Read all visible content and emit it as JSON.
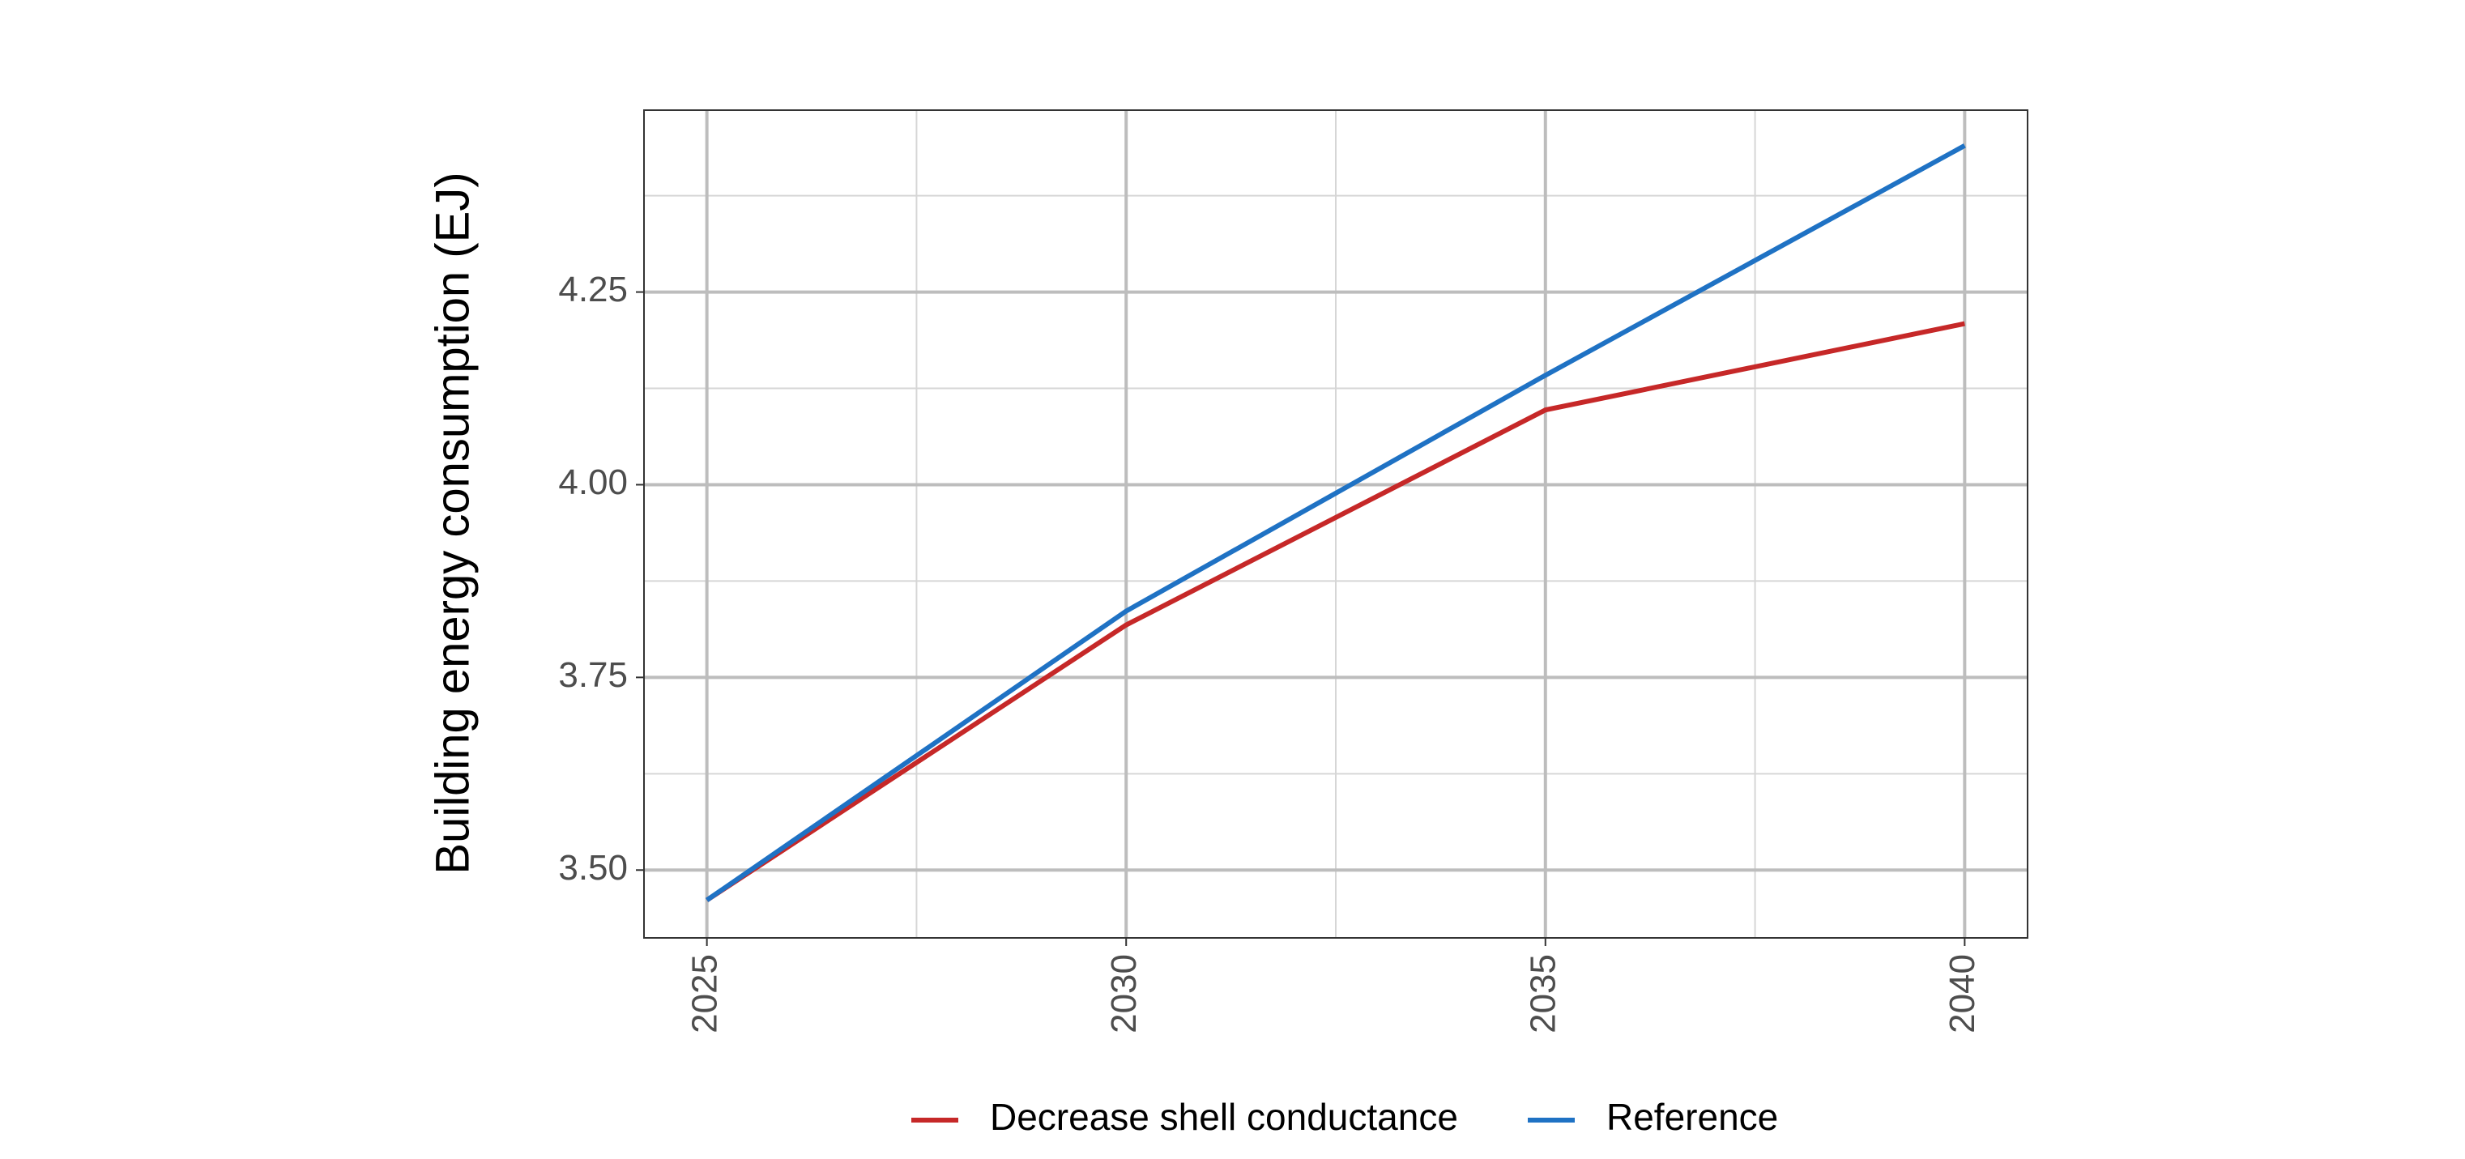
{
  "chart_data": {
    "type": "line",
    "y_label": "Building energy consumption (EJ)",
    "x": [
      2025,
      2030,
      2035,
      2040
    ],
    "series": [
      {
        "name": "Decrease shell conductance",
        "color": "#c62828",
        "values": [
          3.461,
          3.818,
          4.097,
          4.209
        ]
      },
      {
        "name": "Reference",
        "color": "#1f72c4",
        "values": [
          3.461,
          3.836,
          4.142,
          4.44
        ]
      }
    ],
    "xlim": [
      2024.25,
      2040.75
    ],
    "xticks": [
      2025,
      2030,
      2035,
      2040
    ],
    "ylim": [
      3.412,
      4.486
    ],
    "yticks": [
      {
        "value": 3.5,
        "label": "3.50"
      },
      {
        "value": 3.75,
        "label": "3.75"
      },
      {
        "value": 4,
        "label": "4.00"
      },
      {
        "value": 4.25,
        "label": "4.25"
      }
    ],
    "grid": true,
    "legend": "bottom"
  }
}
